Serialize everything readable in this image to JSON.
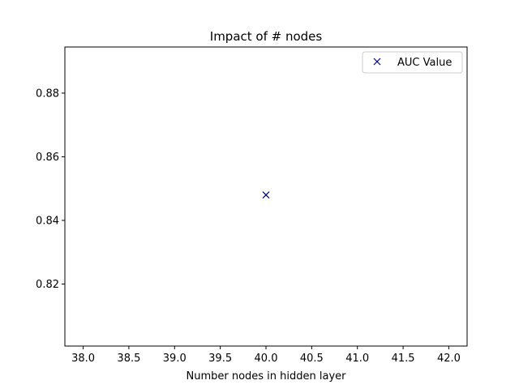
{
  "chart_data": {
    "type": "scatter",
    "title": "Impact of # nodes",
    "xlabel": "Number nodes in hidden layer",
    "ylabel": "",
    "xlim": [
      37.8,
      42.2
    ],
    "ylim": [
      0.8005,
      0.8945
    ],
    "xticks": [
      38.0,
      38.5,
      39.0,
      39.5,
      40.0,
      40.5,
      41.0,
      41.5,
      42.0
    ],
    "xtick_labels": [
      "38.0",
      "38.5",
      "39.0",
      "39.5",
      "40.0",
      "40.5",
      "41.0",
      "41.5",
      "42.0"
    ],
    "yticks": [
      0.82,
      0.84,
      0.86,
      0.88
    ],
    "ytick_labels": [
      "0.82",
      "0.84",
      "0.86",
      "0.88"
    ],
    "grid": false,
    "legend_position": "top-right",
    "series": [
      {
        "name": "AUC Value",
        "marker": "x",
        "color": "#000080",
        "points": [
          {
            "x": 40,
            "y": 0.848
          }
        ]
      }
    ]
  }
}
